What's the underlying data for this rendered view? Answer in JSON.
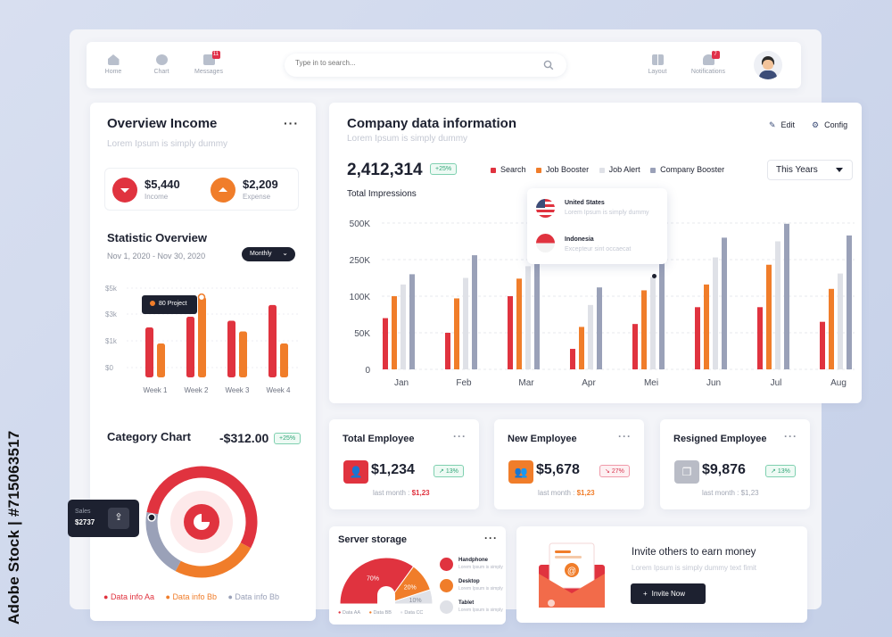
{
  "watermark": "Adobe Stock | #715063517",
  "nav": {
    "home": "Home",
    "chart": "Chart",
    "messages": "Messages",
    "messages_badge": "11",
    "search_placeholder": "Type in to search...",
    "layout": "Layout",
    "notifications": "Notifications",
    "notifications_badge": "7"
  },
  "overview": {
    "title": "Overview Income",
    "subtitle": "Lorem Ipsum is simply dummy",
    "income_value": "$5,440",
    "income_label": "Income",
    "expense_value": "$2,209",
    "expense_label": "Expense"
  },
  "statistic": {
    "title": "Statistic Overview",
    "date_range": "Nov 1, 2020 - Nov 30, 2020",
    "period": "Monthly",
    "tooltip": "80 Project"
  },
  "category": {
    "title": "Category Chart",
    "amount": "-$312.00",
    "badge": "+25%",
    "sales_label": "Sales",
    "sales_value": "$2737",
    "legend": [
      "Data info Aa",
      "Data info Bb",
      "Data info Bb"
    ]
  },
  "company": {
    "title": "Company data information",
    "subtitle": "Lorem Ipsum is simply dummy",
    "edit": "Edit",
    "config": "Config",
    "total": "2,412,314",
    "badge": "+25%",
    "period": "This Years",
    "impressions_label": "Total Impressions",
    "popup": [
      {
        "country": "United States",
        "desc": "Lorem Ipsum is simply dummy"
      },
      {
        "country": "Indonesia",
        "desc": "Excepteur sint occaecat"
      }
    ]
  },
  "cards": [
    {
      "title": "Total Employee",
      "value": "$1,234",
      "trend": "13%",
      "last_label": "last month :",
      "last_value": "$1,23"
    },
    {
      "title": "New Employee",
      "value": "$5,678",
      "trend": "27%",
      "last_label": "last month :",
      "last_value": "$1,23"
    },
    {
      "title": "Resigned Employee",
      "value": "$9,876",
      "trend": "13%",
      "last_label": "last month :",
      "last_value": "$1,23"
    }
  ],
  "server": {
    "title": "Server storage",
    "items": [
      {
        "name": "Handphone",
        "desc": "Lorem Ipsum is simply"
      },
      {
        "name": "Desktop",
        "desc": "Lorem Ipsum is simply"
      },
      {
        "name": "Tablet",
        "desc": "Lorem Ipsum is simply"
      }
    ],
    "legend": [
      "Data AA",
      "Data BB",
      "Data CC"
    ]
  },
  "invite": {
    "title": "Invite others to earn money",
    "desc": "Lorem Ipsum is simply dummy text fimit",
    "button": "Invite Now"
  },
  "colors": {
    "red": "#e0333f",
    "orange": "#f07d2a",
    "light": "#dfe1e7",
    "slate": "#9aa1b8"
  },
  "chart_data": [
    {
      "type": "bar",
      "categories": [
        "Week 1",
        "Week 2",
        "Week 3",
        "Week 4"
      ],
      "yticks": [
        "$5k",
        "$3k",
        "$1k",
        "$0"
      ],
      "series": [
        {
          "values": [
            2.0,
            2.8,
            2.5,
            3.7
          ]
        },
        {
          "values": [
            0.9,
            4.3,
            1.7,
            0.9
          ]
        }
      ]
    },
    {
      "type": "bar",
      "title": "Total Impressions",
      "categories": [
        "Jan",
        "Feb",
        "Mar",
        "Apr",
        "Mei",
        "Jun",
        "Jul",
        "Aug"
      ],
      "yticks": [
        "500K",
        "250K",
        "100K",
        "50K",
        "0"
      ],
      "series": [
        {
          "name": "Search",
          "values": [
            70,
            50,
            100,
            28,
            62,
            85,
            85,
            65
          ]
        },
        {
          "name": "Job Booster",
          "values": [
            100,
            97,
            124,
            58,
            108,
            116,
            143,
            110
          ]
        },
        {
          "name": "Job Alert",
          "values": [
            116,
            125,
            141,
            88,
            126,
            153,
            175,
            131
          ]
        },
        {
          "name": "Company Booster",
          "values": [
            130,
            156,
            171,
            112,
            148,
            180,
            199,
            183
          ]
        }
      ]
    },
    {
      "type": "pie",
      "title": "Category Chart",
      "series": [
        {
          "values": [
            55,
            25,
            20
          ]
        }
      ]
    },
    {
      "type": "pie",
      "title": "Server storage",
      "labels": [
        "Data AA",
        "Data BB",
        "Data CC"
      ],
      "values": [
        70,
        20,
        10
      ],
      "value_labels": [
        "70%",
        "20%",
        "10%"
      ]
    }
  ]
}
